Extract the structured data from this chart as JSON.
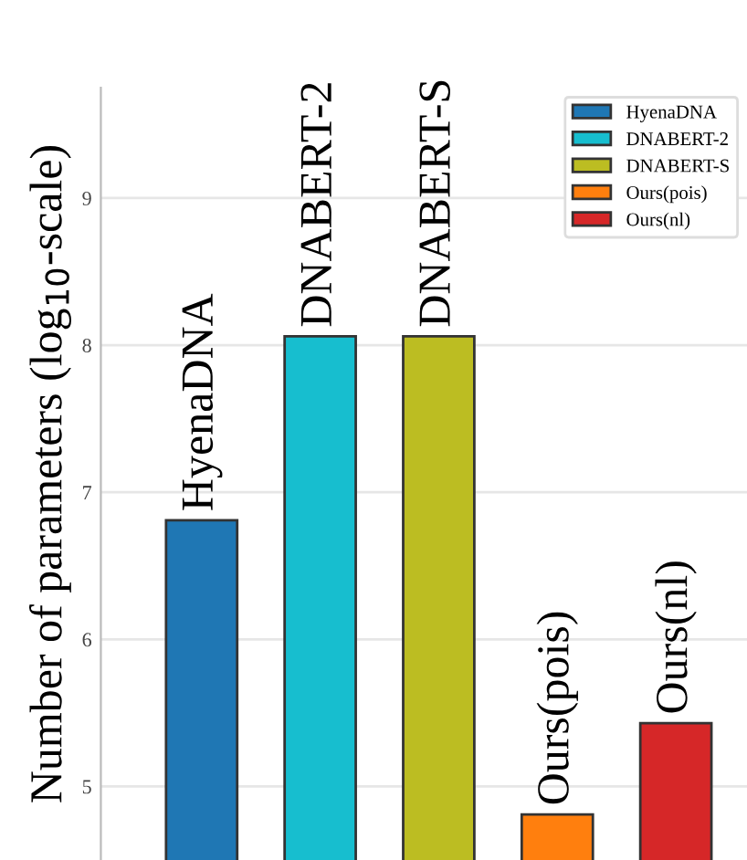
{
  "chart_data": {
    "type": "bar",
    "ylabel": "Number of parameters (log$_{10}$-scale)",
    "categories": [
      "HyenaDNA",
      "DNABERT-2",
      "DNABERT-S",
      "Ours(pois)",
      "Ours(nl)"
    ],
    "series": [
      {
        "name": "HyenaDNA",
        "color": "#1f77b4",
        "values": [
          6.81,
          null,
          null,
          null,
          null
        ]
      },
      {
        "name": "DNABERT-2",
        "color": "#17becf",
        "values": [
          null,
          8.06,
          null,
          null,
          null
        ]
      },
      {
        "name": "DNABERT-S",
        "color": "#bcbd22",
        "values": [
          null,
          null,
          8.06,
          null,
          null
        ]
      },
      {
        "name": "Ours(pois)",
        "color": "#ff7f0e",
        "values": [
          null,
          null,
          null,
          4.81,
          null
        ]
      },
      {
        "name": "Ours(nl)",
        "color": "#d62728",
        "values": [
          null,
          null,
          null,
          null,
          5.43
        ]
      }
    ],
    "ylim": [
      4.5,
      9.75
    ],
    "yticks": [
      5,
      6,
      7,
      8,
      9
    ],
    "grid": "y",
    "legend": "top right",
    "tick_labels": "y"
  }
}
